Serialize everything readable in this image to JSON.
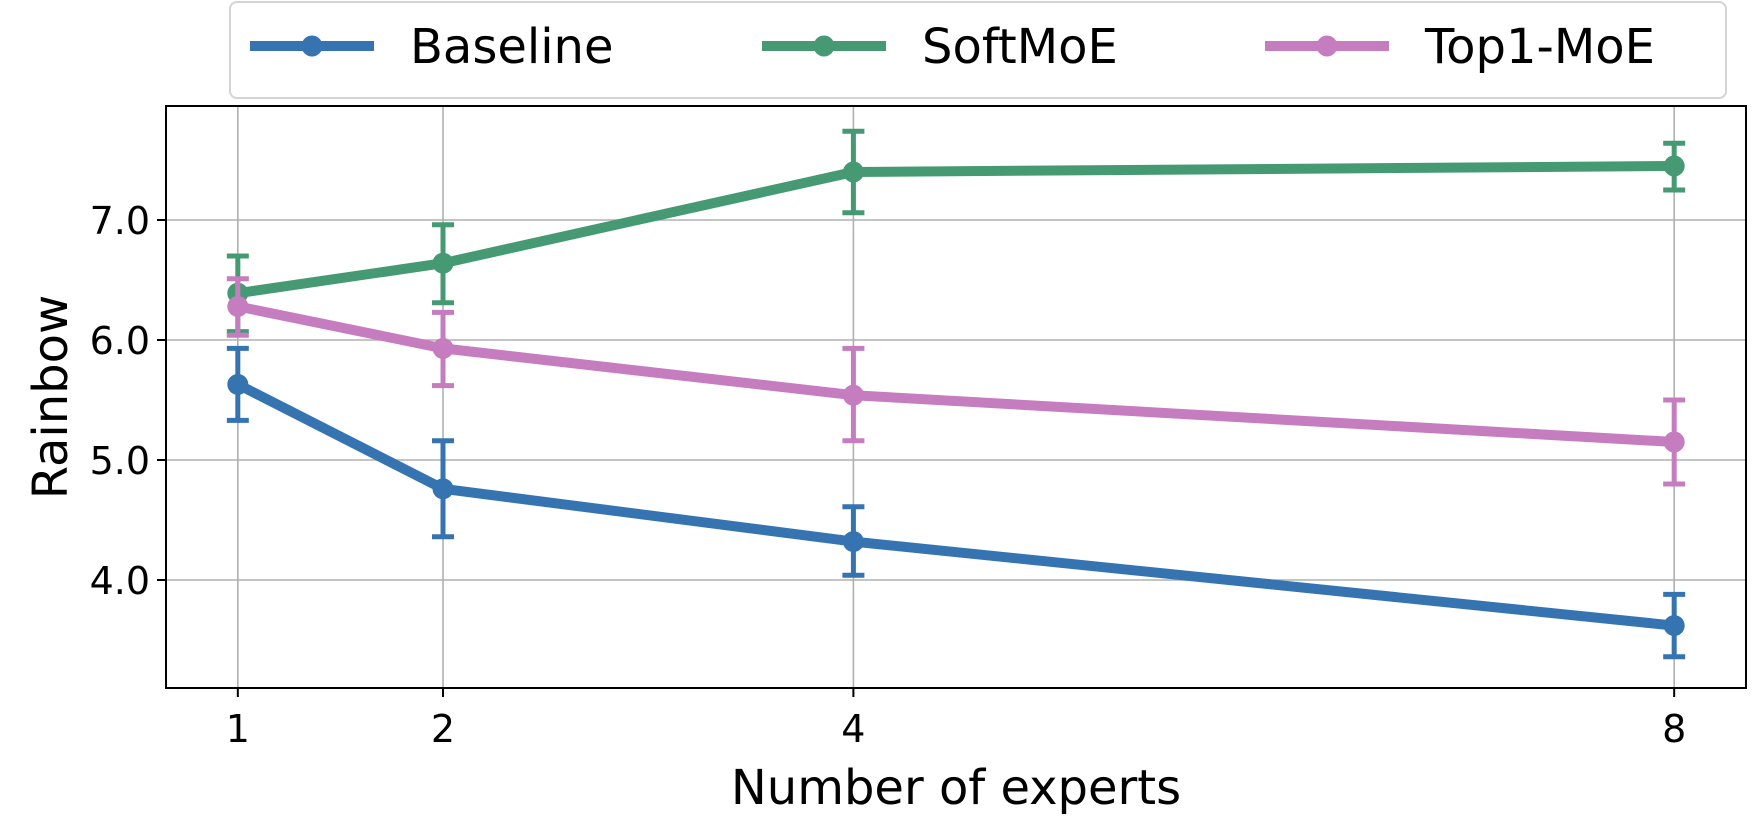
{
  "chart_data": {
    "type": "line",
    "xlabel": "Number of experts",
    "ylabel": "Rainbow",
    "x": [
      1,
      2,
      4,
      8
    ],
    "x_tick_labels": [
      "1",
      "2",
      "4",
      "8"
    ],
    "y_ticks": [
      4.0,
      5.0,
      6.0,
      7.0
    ],
    "y_tick_labels": [
      "4.0",
      "5.0",
      "6.0",
      "7.0"
    ],
    "xlim": [
      0.65,
      8.35
    ],
    "ylim": [
      3.1,
      7.95
    ],
    "grid": true,
    "legend_position": "top-center",
    "series": [
      {
        "name": "Baseline",
        "color": "#3574b1",
        "values": [
          5.63,
          4.76,
          4.32,
          3.62
        ],
        "error_low": [
          5.33,
          4.36,
          4.04,
          3.36
        ],
        "error_high": [
          5.93,
          5.16,
          4.61,
          3.88
        ]
      },
      {
        "name": "SoftMoE",
        "color": "#469a73",
        "values": [
          6.39,
          6.64,
          7.4,
          7.45
        ],
        "error_low": [
          6.07,
          6.31,
          7.06,
          7.25
        ],
        "error_high": [
          6.7,
          6.96,
          7.74,
          7.64
        ]
      },
      {
        "name": "Top1-MoE",
        "color": "#c57dbf",
        "values": [
          6.28,
          5.93,
          5.54,
          5.15
        ],
        "error_low": [
          6.04,
          5.62,
          5.16,
          4.8
        ],
        "error_high": [
          6.51,
          6.23,
          5.93,
          5.5
        ]
      }
    ]
  }
}
